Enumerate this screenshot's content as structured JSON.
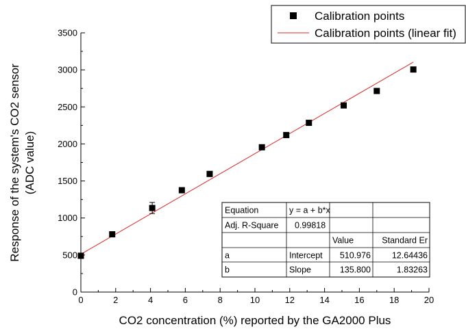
{
  "chart_data": {
    "type": "scatter",
    "xlabel": "CO2 concentration (%) reported by the GA2000 Plus",
    "ylabel_lines": [
      "Response of the system's CO2 sensor",
      "(ADC value)"
    ],
    "xlim": [
      0,
      20
    ],
    "ylim": [
      0,
      3500
    ],
    "x_ticks": [
      0,
      2,
      4,
      6,
      8,
      10,
      12,
      14,
      16,
      18,
      20
    ],
    "y_ticks": [
      0,
      500,
      1000,
      1500,
      2000,
      2500,
      3000,
      3500
    ],
    "grid": false,
    "legend_position": "top-right",
    "series": [
      {
        "name": "Calibration points",
        "marker": "square",
        "color": "#000000",
        "points": [
          {
            "x": 0.0,
            "y": 490
          },
          {
            "x": 1.8,
            "y": 780
          },
          {
            "x": 4.1,
            "y": 1135,
            "err": 75
          },
          {
            "x": 5.8,
            "y": 1375
          },
          {
            "x": 7.4,
            "y": 1595
          },
          {
            "x": 10.4,
            "y": 1955
          },
          {
            "x": 11.8,
            "y": 2120
          },
          {
            "x": 13.1,
            "y": 2285
          },
          {
            "x": 15.1,
            "y": 2520
          },
          {
            "x": 17.0,
            "y": 2715
          },
          {
            "x": 19.1,
            "y": 3005
          }
        ]
      },
      {
        "name": "Calibration points (linear fit)",
        "kind": "line",
        "color": "#e02020",
        "intercept": 510.976,
        "slope": 135.8,
        "x_range": [
          0,
          19.1
        ]
      }
    ],
    "fit_table": {
      "rows": [
        [
          "Equation",
          "y = a + b*x",
          "",
          ""
        ],
        [
          "Adj. R-Square",
          "0.99818",
          "",
          ""
        ],
        [
          "",
          "",
          "Value",
          "Standard Er"
        ],
        [
          "a",
          "Intercept",
          "510.976",
          "12.64436"
        ],
        [
          "b",
          "Slope",
          "135.800",
          "1.83263"
        ]
      ]
    }
  }
}
